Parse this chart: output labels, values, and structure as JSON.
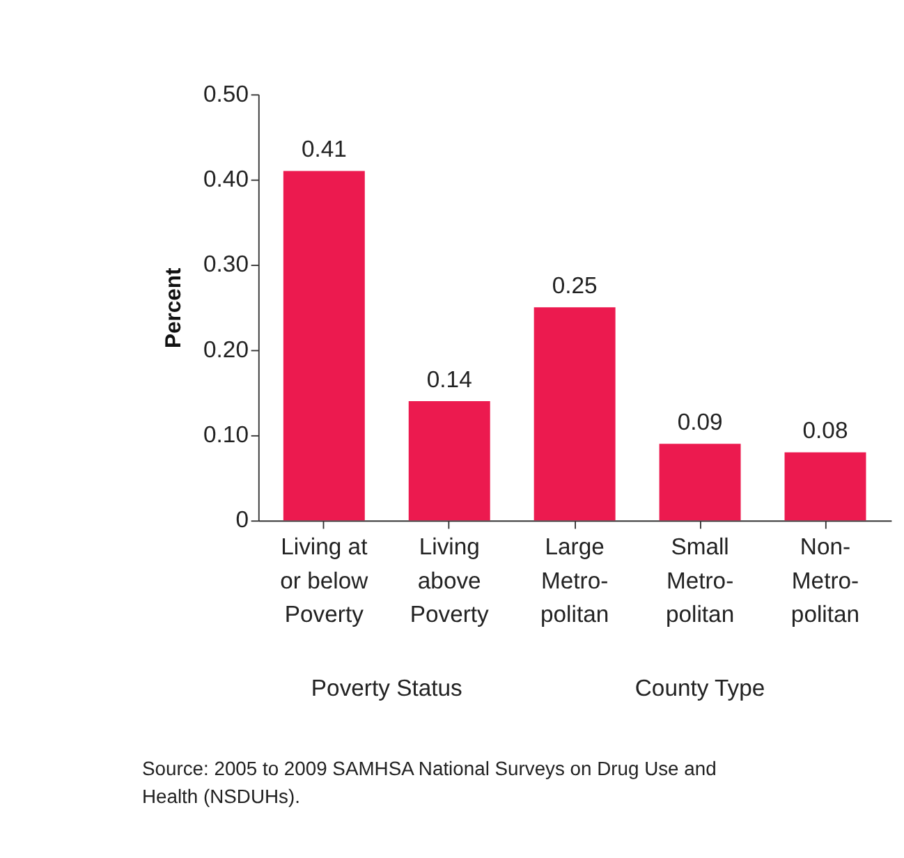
{
  "chart_data": {
    "type": "bar",
    "categories": [
      "Living at\nor below\nPoverty",
      "Living\nabove\nPoverty",
      "Large\nMetro-\npolitan",
      "Small\nMetro-\npolitan",
      "Non-\nMetro-\npolitan"
    ],
    "values": [
      0.41,
      0.14,
      0.25,
      0.09,
      0.08
    ],
    "color": "#ec1a4f",
    "ylabel": "Percent",
    "ylim": [
      0,
      0.5
    ],
    "yticks": [
      {
        "value": 0,
        "label": "0"
      },
      {
        "value": 0.1,
        "label": "0.10"
      },
      {
        "value": 0.2,
        "label": "0.20"
      },
      {
        "value": 0.3,
        "label": "0.30"
      },
      {
        "value": 0.4,
        "label": "0.40"
      },
      {
        "value": 0.5,
        "label": "0.50"
      }
    ],
    "data_labels": true,
    "grid": false,
    "annotations": [
      "Poverty Status",
      "County Type",
      "Source: 2005 to 2009 SAMHSA National Surveys on Drug Use and\n  Health (NSDUHs)."
    ]
  }
}
